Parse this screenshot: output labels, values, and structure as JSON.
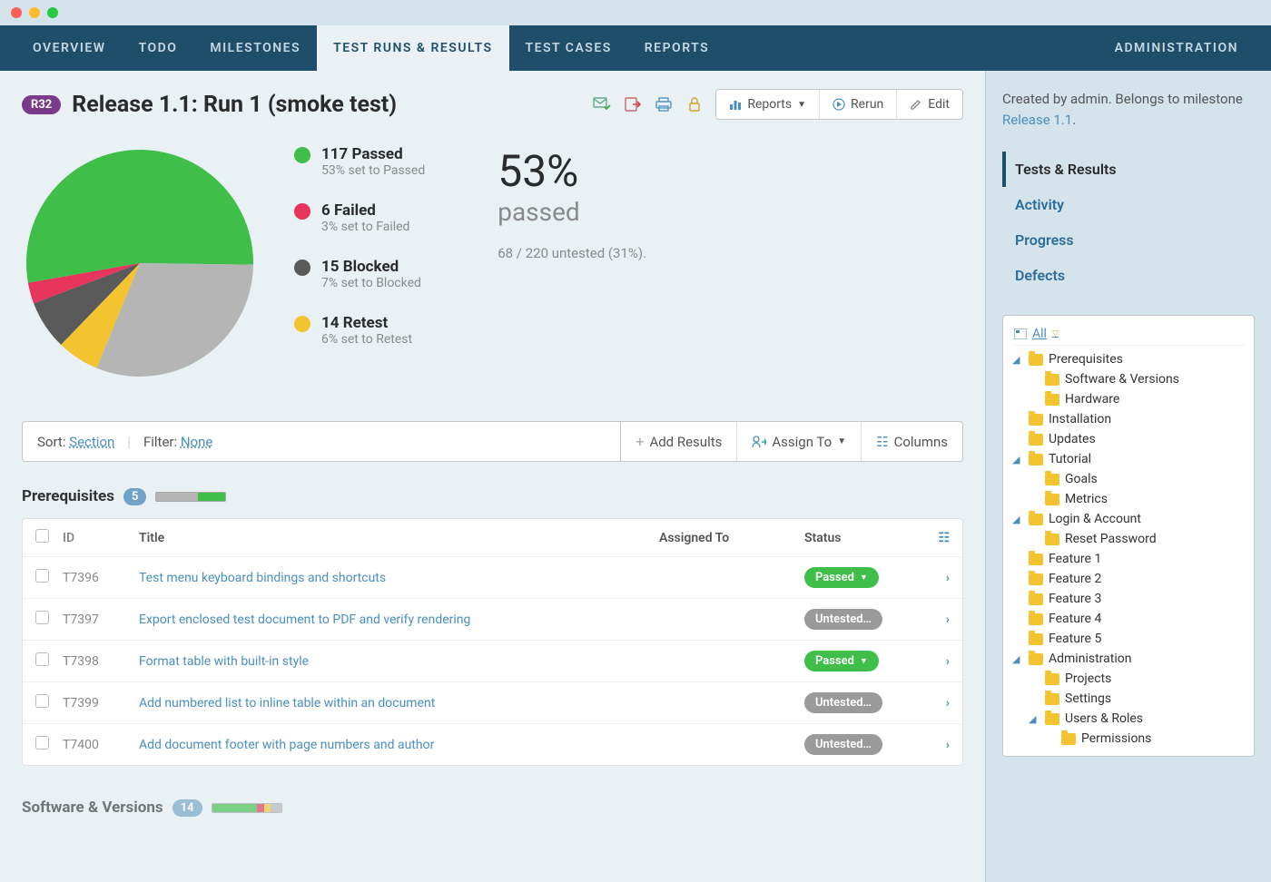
{
  "titlebar": {
    "dots": [
      "#ff5f57",
      "#febc2e",
      "#28c840"
    ]
  },
  "nav": {
    "items": [
      "OVERVIEW",
      "TODO",
      "MILESTONES",
      "TEST RUNS & RESULTS",
      "TEST CASES",
      "REPORTS"
    ],
    "active_index": 3,
    "admin": "ADMINISTRATION"
  },
  "header": {
    "badge": "R32",
    "title": "Release 1.1: Run 1 (smoke test)",
    "reports_btn": "Reports",
    "rerun_btn": "Rerun",
    "edit_btn": "Edit"
  },
  "pie": {
    "type": "pie",
    "slices": [
      {
        "label": "Passed",
        "value": 117,
        "pct": 53,
        "color": "#3fbf4a"
      },
      {
        "label": "Failed",
        "value": 6,
        "pct": 3,
        "color": "#e7345a"
      },
      {
        "label": "Blocked",
        "value": 15,
        "pct": 7,
        "color": "#5a5a5a"
      },
      {
        "label": "Retest",
        "value": 14,
        "pct": 6,
        "color": "#f4c430"
      },
      {
        "label": "Untested",
        "value": 68,
        "pct": 31,
        "color": "#b5b5b5"
      }
    ],
    "legend": [
      {
        "title": "117 Passed",
        "sub": "53% set to Passed",
        "color": "#3fbf4a"
      },
      {
        "title": "6 Failed",
        "sub": "3% set to Failed",
        "color": "#e7345a"
      },
      {
        "title": "15 Blocked",
        "sub": "7% set to Blocked",
        "color": "#5a5a5a"
      },
      {
        "title": "14 Retest",
        "sub": "6% set to Retest",
        "color": "#f4c430"
      }
    ],
    "big_pct": "53%",
    "big_label": "passed",
    "detail": "68 / 220 untested (31%)."
  },
  "toolbar": {
    "sort_label": "Sort: ",
    "sort_value": "Section",
    "filter_label": "Filter: ",
    "filter_value": "None",
    "add_results": "Add Results",
    "assign_to": "Assign To",
    "columns": "Columns"
  },
  "section1": {
    "title": "Prerequisites",
    "count": "5",
    "bar": [
      {
        "color": "#b5b5b5",
        "pct": 60
      },
      {
        "color": "#3fbf4a",
        "pct": 40
      }
    ]
  },
  "table": {
    "head": {
      "id": "ID",
      "title": "Title",
      "assigned": "Assigned To",
      "status": "Status"
    },
    "rows": [
      {
        "id": "T7396",
        "title": "Test menu keyboard bindings and shortcuts",
        "status": "Passed",
        "status_color": "#3fbf4a",
        "has_caret": true
      },
      {
        "id": "T7397",
        "title": "Export enclosed test document to PDF and verify rendering",
        "status": "Untested…",
        "status_color": "#9a9a9a",
        "has_caret": false
      },
      {
        "id": "T7398",
        "title": "Format table with built-in style",
        "status": "Passed",
        "status_color": "#3fbf4a",
        "has_caret": true
      },
      {
        "id": "T7399",
        "title": "Add numbered list to inline table within an document",
        "status": "Untested…",
        "status_color": "#9a9a9a",
        "has_caret": false
      },
      {
        "id": "T7400",
        "title": "Add document footer with page numbers and author",
        "status": "Untested…",
        "status_color": "#9a9a9a",
        "has_caret": false
      }
    ]
  },
  "section2": {
    "title": "Software & Versions",
    "count": "14",
    "bar": [
      {
        "color": "#3fbf4a",
        "pct": 65
      },
      {
        "color": "#e7345a",
        "pct": 10
      },
      {
        "color": "#f4c430",
        "pct": 10
      },
      {
        "color": "#b5b5b5",
        "pct": 15
      }
    ]
  },
  "side": {
    "created_prefix": "Created by admin. Belongs to milestone ",
    "created_link": "Release 1.1",
    "nav": [
      "Tests & Results",
      "Activity",
      "Progress",
      "Defects"
    ],
    "nav_active": 0,
    "tree_all": "All",
    "tree": [
      {
        "caret": "◢",
        "label": "Prerequisites",
        "indent": 0
      },
      {
        "caret": "",
        "label": "Software & Versions",
        "indent": 1
      },
      {
        "caret": "",
        "label": "Hardware",
        "indent": 1
      },
      {
        "caret": "",
        "label": "Installation",
        "indent": 0
      },
      {
        "caret": "",
        "label": "Updates",
        "indent": 0
      },
      {
        "caret": "◢",
        "label": "Tutorial",
        "indent": 0
      },
      {
        "caret": "",
        "label": "Goals",
        "indent": 1
      },
      {
        "caret": "",
        "label": "Metrics",
        "indent": 1
      },
      {
        "caret": "◢",
        "label": "Login & Account",
        "indent": 0
      },
      {
        "caret": "",
        "label": "Reset Password",
        "indent": 1
      },
      {
        "caret": "",
        "label": "Feature 1",
        "indent": 0
      },
      {
        "caret": "",
        "label": "Feature 2",
        "indent": 0
      },
      {
        "caret": "",
        "label": "Feature 3",
        "indent": 0
      },
      {
        "caret": "",
        "label": "Feature 4",
        "indent": 0
      },
      {
        "caret": "",
        "label": "Feature 5",
        "indent": 0
      },
      {
        "caret": "◢",
        "label": "Administration",
        "indent": 0
      },
      {
        "caret": "",
        "label": "Projects",
        "indent": 1
      },
      {
        "caret": "",
        "label": "Settings",
        "indent": 1
      },
      {
        "caret": "◢",
        "label": "Users & Roles",
        "indent": 1
      },
      {
        "caret": "",
        "label": "Permissions",
        "indent": 2
      }
    ]
  }
}
